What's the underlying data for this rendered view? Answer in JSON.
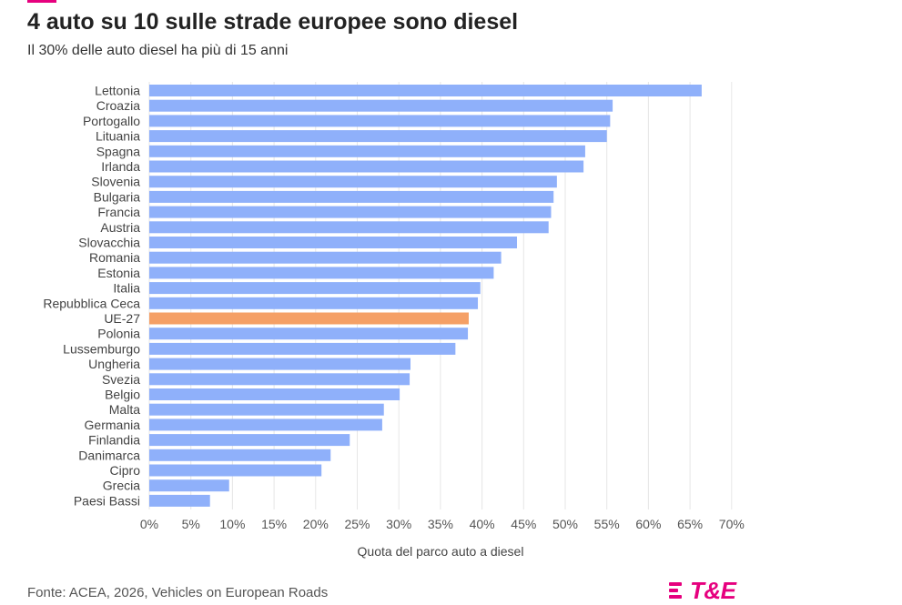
{
  "header": {
    "title": "4 auto su 10 sulle strade europee sono diesel",
    "subtitle": "Il 30% delle auto diesel ha più di 15 anni"
  },
  "footer": {
    "source": "Fonte: ACEA, 2026, Vehicles on European Roads",
    "logo_text": "T&E"
  },
  "colors": {
    "bar": "#8fb0fa",
    "highlight": "#f5a066",
    "brand": "#e6007e",
    "grid": "#e6e6e6"
  },
  "chart_data": {
    "type": "bar",
    "orientation": "horizontal",
    "title": "4 auto su 10 sulle strade europee sono diesel",
    "subtitle": "Il 30% delle auto diesel ha più di 15 anni",
    "xlabel": "Quota del parco auto a diesel",
    "xlim": [
      0,
      70
    ],
    "xticks": [
      0,
      5,
      10,
      15,
      20,
      25,
      30,
      35,
      40,
      45,
      50,
      55,
      60,
      65,
      70
    ],
    "tick_suffix": "%",
    "grid": true,
    "highlight_category": "UE-27",
    "categories": [
      "Lettonia",
      "Croazia",
      "Portogallo",
      "Lituania",
      "Spagna",
      "Irlanda",
      "Slovenia",
      "Bulgaria",
      "Francia",
      "Austria",
      "Slovacchia",
      "Romania",
      "Estonia",
      "Italia",
      "Repubblica Ceca",
      "UE-27",
      "Polonia",
      "Lussemburgo",
      "Ungheria",
      "Svezia",
      "Belgio",
      "Malta",
      "Germania",
      "Finlandia",
      "Danimarca",
      "Cipro",
      "Grecia",
      "Paesi Bassi"
    ],
    "values": [
      66.4,
      55.7,
      55.4,
      55.0,
      52.4,
      52.2,
      49.0,
      48.6,
      48.3,
      48.0,
      44.2,
      42.3,
      41.4,
      39.8,
      39.5,
      38.4,
      38.3,
      36.8,
      31.4,
      31.3,
      30.1,
      28.2,
      28.0,
      24.1,
      21.8,
      20.7,
      9.6,
      7.3
    ]
  }
}
